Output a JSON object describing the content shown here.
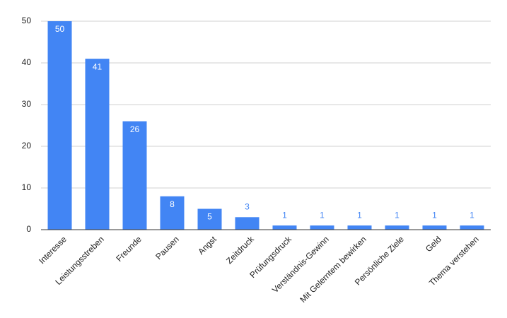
{
  "chart_data": {
    "type": "bar",
    "categories": [
      "Interesse",
      "Leistungsstreben",
      "Freunde",
      "Pausen",
      "Angst",
      "Zeitdruck",
      "Prüfungsdruck",
      "Verständnis-Gewinn",
      "Mit Gelerntem bewirken",
      "Persönliche Ziele",
      "Geld",
      "Thema verstehen"
    ],
    "values": [
      50,
      41,
      26,
      8,
      5,
      3,
      1,
      1,
      1,
      1,
      1,
      1
    ],
    "color": "#4285f4",
    "ylim": [
      0,
      50
    ],
    "yticks": [
      0,
      10,
      20,
      30,
      40,
      50
    ],
    "grid": true
  }
}
